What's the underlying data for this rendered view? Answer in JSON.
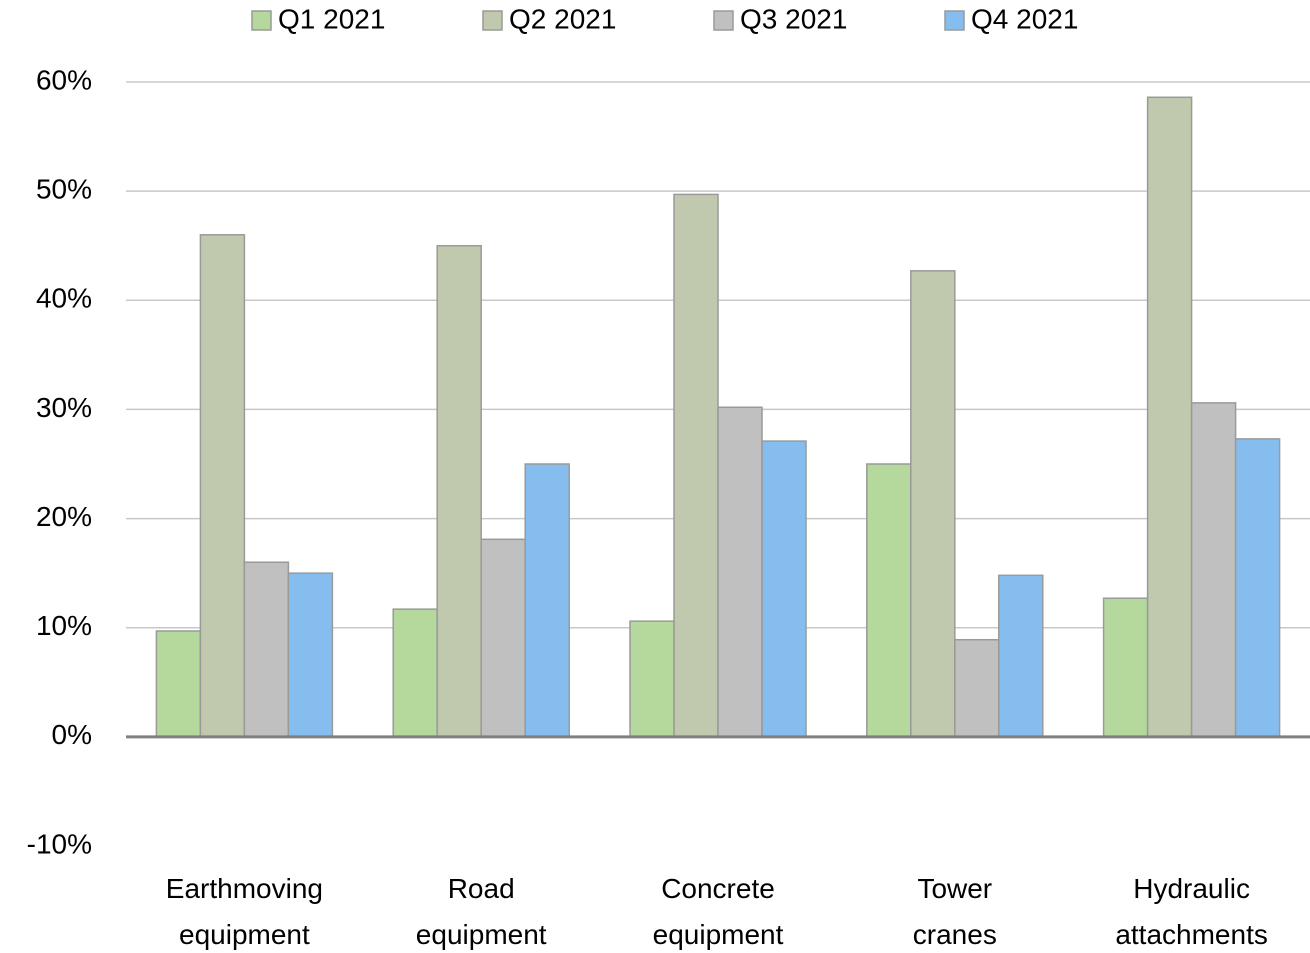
{
  "chart_data": {
    "type": "bar",
    "categories": [
      "Earthmoving equipment",
      "Road equipment",
      "Concrete equipment",
      "Tower cranes",
      "Hydraulic attachments"
    ],
    "series": [
      {
        "name": "Q1 2021",
        "color": "#b5d99c",
        "values": [
          9.7,
          11.7,
          10.6,
          25.0,
          12.7
        ]
      },
      {
        "name": "Q2 2021",
        "color": "#c0c9ad",
        "values": [
          46.0,
          45.0,
          49.7,
          42.7,
          58.6
        ]
      },
      {
        "name": "Q3 2021",
        "color": "#c0c0c0",
        "values": [
          16.0,
          18.1,
          30.2,
          8.9,
          30.6
        ]
      },
      {
        "name": "Q4 2021",
        "color": "#85bdee",
        "values": [
          15.0,
          25.0,
          27.1,
          14.8,
          27.3
        ]
      }
    ],
    "ylim": [
      -10,
      60
    ],
    "yticks": [
      {
        "value": -10,
        "label": "-10%"
      },
      {
        "value": 0,
        "label": "0%"
      },
      {
        "value": 10,
        "label": "10%"
      },
      {
        "value": 20,
        "label": "20%"
      },
      {
        "value": 30,
        "label": "30%"
      },
      {
        "value": 40,
        "label": "40%"
      },
      {
        "value": 50,
        "label": "50%"
      },
      {
        "value": 60,
        "label": "60%"
      }
    ],
    "grid": true,
    "legend": "top"
  }
}
